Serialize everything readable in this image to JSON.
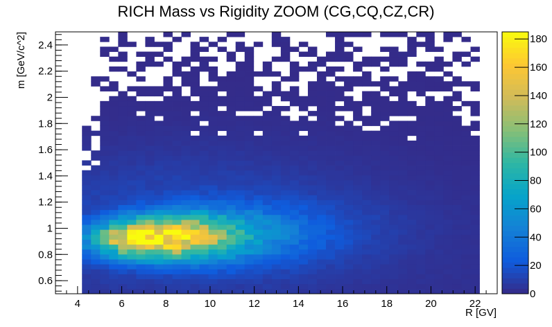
{
  "chart_data": {
    "type": "heatmap",
    "title": "RICH Mass vs Rigidity ZOOM (CG,CQ,CZ,CR)",
    "xlabel": "R [GV]",
    "ylabel": "m [GeV/c^2]",
    "xlim": [
      3.0,
      23.0
    ],
    "ylim": [
      0.5,
      2.5
    ],
    "x_ticks": [
      4,
      6,
      8,
      10,
      12,
      14,
      16,
      18,
      20,
      22
    ],
    "x_tick_labels": [
      "4",
      "6",
      "8",
      "10",
      "12",
      "14",
      "16",
      "18",
      "20",
      "22"
    ],
    "y_ticks": [
      0.6,
      0.8,
      1.0,
      1.2,
      1.4,
      1.6,
      1.8,
      2.0,
      2.2,
      2.4
    ],
    "y_tick_labels": [
      "0.6",
      "0.8",
      "1",
      "1.2",
      "1.4",
      "1.6",
      "1.8",
      "2",
      "2.2",
      "2.4"
    ],
    "colorbar": {
      "range": [
        0,
        185
      ],
      "ticks": [
        0,
        20,
        40,
        60,
        80,
        100,
        120,
        140,
        160,
        180
      ],
      "tick_labels": [
        "0",
        "20",
        "40",
        "60",
        "80",
        "100",
        "120",
        "140",
        "160",
        "180"
      ]
    },
    "bins": {
      "x_start": 4.2,
      "x_end": 22.2,
      "nx": 44,
      "y_start": 0.5,
      "y_end": 2.5,
      "ny": 53
    },
    "peak": {
      "x": 7.5,
      "y": 0.93,
      "value": 180
    },
    "palette": [
      "#352a87",
      "#0f5cdd",
      "#1481d6",
      "#06a4ca",
      "#2eb7a4",
      "#87bf77",
      "#d1bb59",
      "#fec832",
      "#f9fb0e"
    ]
  }
}
